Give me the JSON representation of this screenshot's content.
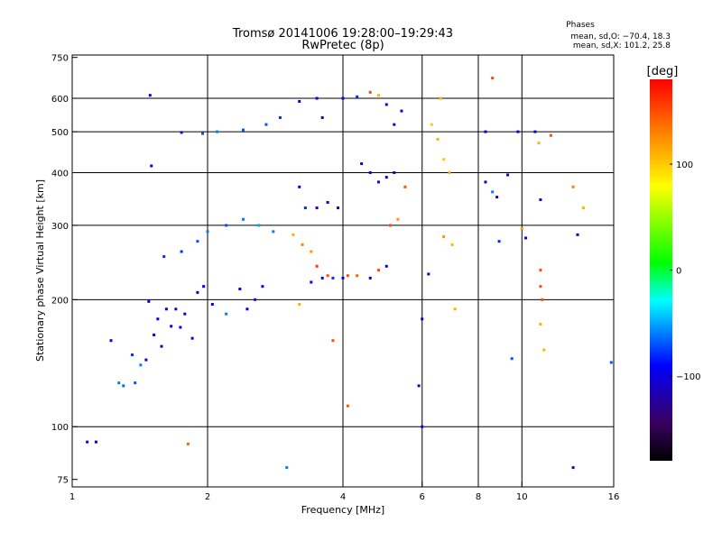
{
  "chart_data": {
    "type": "scatter",
    "title": "Tromsø 20141006 19:28:00–19:29:43",
    "subtitle": "RwPretec (8p)",
    "xlabel": "Frequency [MHz]",
    "ylabel": "Stationary phase Virtual Height [km]",
    "x_scale": "log",
    "y_scale": "log",
    "xlim": [
      1,
      16
    ],
    "ylim": [
      72,
      760
    ],
    "x_ticks": [
      1,
      2,
      4,
      6,
      8,
      10,
      16
    ],
    "x_tick_labels": [
      "1",
      "2",
      "4",
      "6",
      "8",
      "10",
      "16"
    ],
    "y_ticks": [
      75,
      100,
      200,
      300,
      400,
      500,
      600,
      750
    ],
    "y_tick_labels": [
      "75",
      "100",
      "200",
      "300",
      "400",
      "500",
      "600",
      "750"
    ],
    "x_gridlines": [
      2,
      4,
      6,
      8,
      10
    ],
    "y_gridlines": [
      100,
      200,
      300,
      400,
      500,
      600
    ],
    "grid": true,
    "phases_box": {
      "title": "Phases",
      "line_o": "mean, sd,O: −70.4, 18.3",
      "line_x": "mean, sd,X: 101.2, 25.8"
    },
    "colorbar": {
      "label": "[deg]",
      "range": [
        -180,
        180
      ],
      "ticks": [
        100,
        0,
        -100
      ],
      "tick_labels": [
        "100",
        "0",
        "−100"
      ],
      "colormap": [
        "#000000",
        "#3a0060",
        "#0000ff",
        "#00ffff",
        "#00ff00",
        "#ffff00",
        "#ff8000",
        "#ff0000"
      ]
    },
    "series": [
      {
        "values": [
          {
            "x": 1.08,
            "y": 92,
            "phase": -100
          },
          {
            "x": 1.13,
            "y": 92,
            "phase": -95
          },
          {
            "x": 1.22,
            "y": 160,
            "phase": -100
          },
          {
            "x": 1.27,
            "y": 127,
            "phase": -60
          },
          {
            "x": 1.3,
            "y": 125,
            "phase": -65
          },
          {
            "x": 1.36,
            "y": 148,
            "phase": -80
          },
          {
            "x": 1.38,
            "y": 127,
            "phase": -70
          },
          {
            "x": 1.42,
            "y": 140,
            "phase": -60
          },
          {
            "x": 1.46,
            "y": 144,
            "phase": -105
          },
          {
            "x": 1.48,
            "y": 198,
            "phase": -100
          },
          {
            "x": 1.49,
            "y": 610,
            "phase": -100
          },
          {
            "x": 1.5,
            "y": 415,
            "phase": -110
          },
          {
            "x": 1.52,
            "y": 165,
            "phase": -100
          },
          {
            "x": 1.55,
            "y": 180,
            "phase": -100
          },
          {
            "x": 1.58,
            "y": 155,
            "phase": -110
          },
          {
            "x": 1.62,
            "y": 190,
            "phase": -95
          },
          {
            "x": 1.66,
            "y": 173,
            "phase": -110
          },
          {
            "x": 1.7,
            "y": 190,
            "phase": -100
          },
          {
            "x": 1.74,
            "y": 172,
            "phase": -95
          },
          {
            "x": 1.78,
            "y": 185,
            "phase": -100
          },
          {
            "x": 1.81,
            "y": 91,
            "phase": 140
          },
          {
            "x": 1.85,
            "y": 162,
            "phase": -105
          },
          {
            "x": 1.9,
            "y": 208,
            "phase": -100
          },
          {
            "x": 1.96,
            "y": 215,
            "phase": -90
          },
          {
            "x": 2.05,
            "y": 195,
            "phase": -100
          },
          {
            "x": 2.2,
            "y": 185,
            "phase": -60
          },
          {
            "x": 2.36,
            "y": 212,
            "phase": -95
          },
          {
            "x": 2.45,
            "y": 190,
            "phase": -90
          },
          {
            "x": 2.55,
            "y": 200,
            "phase": -85
          },
          {
            "x": 2.65,
            "y": 215,
            "phase": -95
          },
          {
            "x": 1.6,
            "y": 253,
            "phase": -80
          },
          {
            "x": 1.75,
            "y": 260,
            "phase": -80
          },
          {
            "x": 1.9,
            "y": 275,
            "phase": -70
          },
          {
            "x": 2.0,
            "y": 290,
            "phase": -60
          },
          {
            "x": 2.2,
            "y": 300,
            "phase": -70
          },
          {
            "x": 2.4,
            "y": 310,
            "phase": -60
          },
          {
            "x": 2.6,
            "y": 300,
            "phase": -50
          },
          {
            "x": 2.8,
            "y": 290,
            "phase": -60
          },
          {
            "x": 1.75,
            "y": 498,
            "phase": -100
          },
          {
            "x": 1.95,
            "y": 495,
            "phase": -70
          },
          {
            "x": 2.1,
            "y": 500,
            "phase": -60
          },
          {
            "x": 2.4,
            "y": 505,
            "phase": -70
          },
          {
            "x": 2.7,
            "y": 520,
            "phase": -70
          },
          {
            "x": 2.9,
            "y": 540,
            "phase": -80
          },
          {
            "x": 3.2,
            "y": 590,
            "phase": -90
          },
          {
            "x": 3.5,
            "y": 600,
            "phase": -100
          },
          {
            "x": 3.6,
            "y": 540,
            "phase": -110
          },
          {
            "x": 3.2,
            "y": 370,
            "phase": -90
          },
          {
            "x": 3.3,
            "y": 330,
            "phase": -80
          },
          {
            "x": 3.5,
            "y": 330,
            "phase": -110
          },
          {
            "x": 3.7,
            "y": 340,
            "phase": -100
          },
          {
            "x": 3.9,
            "y": 330,
            "phase": -100
          },
          {
            "x": 3.1,
            "y": 285,
            "phase": 110
          },
          {
            "x": 3.25,
            "y": 270,
            "phase": 130
          },
          {
            "x": 3.4,
            "y": 260,
            "phase": 120
          },
          {
            "x": 3.5,
            "y": 240,
            "phase": 160
          },
          {
            "x": 3.7,
            "y": 228,
            "phase": 150
          },
          {
            "x": 3.2,
            "y": 195,
            "phase": 110
          },
          {
            "x": 3.4,
            "y": 220,
            "phase": -90
          },
          {
            "x": 3.6,
            "y": 225,
            "phase": -100
          },
          {
            "x": 3.8,
            "y": 225,
            "phase": -80
          },
          {
            "x": 4.0,
            "y": 225,
            "phase": -90
          },
          {
            "x": 4.1,
            "y": 228,
            "phase": 150
          },
          {
            "x": 4.3,
            "y": 228,
            "phase": 140
          },
          {
            "x": 4.6,
            "y": 225,
            "phase": -90
          },
          {
            "x": 4.8,
            "y": 235,
            "phase": 150
          },
          {
            "x": 5.0,
            "y": 240,
            "phase": -100
          },
          {
            "x": 5.1,
            "y": 300,
            "phase": 150
          },
          {
            "x": 5.3,
            "y": 310,
            "phase": 120
          },
          {
            "x": 5.5,
            "y": 370,
            "phase": 150
          },
          {
            "x": 4.0,
            "y": 600,
            "phase": -100
          },
          {
            "x": 4.3,
            "y": 605,
            "phase": -80
          },
          {
            "x": 4.6,
            "y": 620,
            "phase": 150
          },
          {
            "x": 4.8,
            "y": 610,
            "phase": 110
          },
          {
            "x": 5.0,
            "y": 580,
            "phase": -100
          },
          {
            "x": 5.2,
            "y": 520,
            "phase": -100
          },
          {
            "x": 5.4,
            "y": 560,
            "phase": -110
          },
          {
            "x": 4.4,
            "y": 420,
            "phase": -110
          },
          {
            "x": 4.6,
            "y": 400,
            "phase": -100
          },
          {
            "x": 4.8,
            "y": 380,
            "phase": -110
          },
          {
            "x": 5.0,
            "y": 390,
            "phase": -100
          },
          {
            "x": 5.2,
            "y": 400,
            "phase": -110
          },
          {
            "x": 6.3,
            "y": 520,
            "phase": 100
          },
          {
            "x": 6.5,
            "y": 480,
            "phase": 110
          },
          {
            "x": 6.7,
            "y": 430,
            "phase": 100
          },
          {
            "x": 6.9,
            "y": 400,
            "phase": 110
          },
          {
            "x": 6.6,
            "y": 600,
            "phase": 110
          },
          {
            "x": 6.2,
            "y": 230,
            "phase": -100
          },
          {
            "x": 6.0,
            "y": 180,
            "phase": -110
          },
          {
            "x": 5.9,
            "y": 125,
            "phase": -110
          },
          {
            "x": 6.0,
            "y": 100,
            "phase": -100
          },
          {
            "x": 6.7,
            "y": 282,
            "phase": 120
          },
          {
            "x": 7.0,
            "y": 270,
            "phase": 110
          },
          {
            "x": 7.1,
            "y": 190,
            "phase": 110
          },
          {
            "x": 8.3,
            "y": 500,
            "phase": -100
          },
          {
            "x": 8.6,
            "y": 670,
            "phase": 150
          },
          {
            "x": 8.3,
            "y": 380,
            "phase": -110
          },
          {
            "x": 8.6,
            "y": 360,
            "phase": -60
          },
          {
            "x": 8.8,
            "y": 350,
            "phase": -110
          },
          {
            "x": 8.9,
            "y": 275,
            "phase": -80
          },
          {
            "x": 9.3,
            "y": 395,
            "phase": -110
          },
          {
            "x": 9.5,
            "y": 145,
            "phase": -70
          },
          {
            "x": 9.8,
            "y": 500,
            "phase": -100
          },
          {
            "x": 10.0,
            "y": 295,
            "phase": 120
          },
          {
            "x": 10.2,
            "y": 280,
            "phase": -90
          },
          {
            "x": 10.7,
            "y": 500,
            "phase": -100
          },
          {
            "x": 10.9,
            "y": 470,
            "phase": 110
          },
          {
            "x": 11.0,
            "y": 345,
            "phase": -110
          },
          {
            "x": 11.0,
            "y": 235,
            "phase": 150
          },
          {
            "x": 11.0,
            "y": 215,
            "phase": 150
          },
          {
            "x": 11.1,
            "y": 200,
            "phase": 150
          },
          {
            "x": 11.0,
            "y": 175,
            "phase": 110
          },
          {
            "x": 11.2,
            "y": 152,
            "phase": 110
          },
          {
            "x": 11.6,
            "y": 490,
            "phase": 150
          },
          {
            "x": 13.0,
            "y": 370,
            "phase": 130
          },
          {
            "x": 13.3,
            "y": 285,
            "phase": -100
          },
          {
            "x": 13.7,
            "y": 330,
            "phase": 110
          },
          {
            "x": 13.0,
            "y": 80,
            "phase": -100
          },
          {
            "x": 15.8,
            "y": 142,
            "phase": -70
          },
          {
            "x": 3.0,
            "y": 80,
            "phase": -60
          },
          {
            "x": 4.1,
            "y": 112,
            "phase": 150
          },
          {
            "x": 3.8,
            "y": 160,
            "phase": 150
          }
        ]
      }
    ]
  }
}
